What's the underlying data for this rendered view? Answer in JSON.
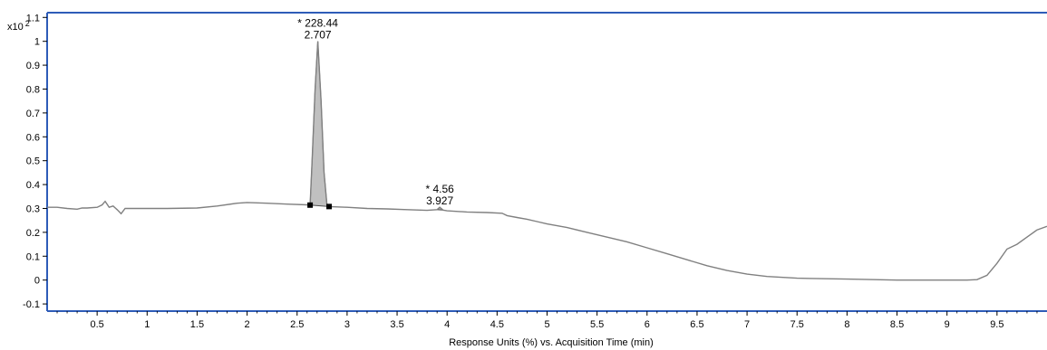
{
  "chart_data": {
    "type": "line",
    "y_multiplier": "x10",
    "y_exponent": "2",
    "xlabel": "Response Units (%) vs. Acquisition Time (min)",
    "xlim": [
      0,
      10
    ],
    "ylim": [
      -0.13,
      1.12
    ],
    "x_ticks": [
      0.5,
      1,
      1.5,
      2,
      2.5,
      3,
      3.5,
      4,
      4.5,
      5,
      5.5,
      6,
      6.5,
      7,
      7.5,
      8,
      8.5,
      9,
      9.5
    ],
    "x_tick_labels": [
      "0.5",
      "1",
      "1.5",
      "2",
      "2.5",
      "3",
      "3.5",
      "4",
      "4.5",
      "5",
      "5.5",
      "6",
      "6.5",
      "7",
      "7.5",
      "8",
      "8.5",
      "9",
      "9.5"
    ],
    "y_ticks": [
      -0.1,
      0,
      0.1,
      0.2,
      0.3,
      0.4,
      0.5,
      0.6,
      0.7,
      0.8,
      0.9,
      1,
      1.1
    ],
    "y_tick_labels": [
      "-0.1",
      "0",
      "0.1",
      "0.2",
      "0.3",
      "0.4",
      "0.5",
      "0.6",
      "0.7",
      "0.8",
      "0.9",
      "1",
      "1.1"
    ],
    "grid": false,
    "colors": {
      "trace": "#808080",
      "peak_fill": "#c0c0c0",
      "frame": "#2e5cb8"
    },
    "series": [
      {
        "x": [
          0,
          0.1,
          0.2,
          0.3,
          0.35,
          0.4,
          0.5,
          0.55,
          0.58,
          0.62,
          0.66,
          0.7,
          0.74,
          0.78,
          0.82,
          0.9,
          1.0,
          1.2,
          1.5,
          1.7,
          1.9,
          2.0,
          2.2,
          2.4,
          2.6,
          2.63,
          2.65,
          2.68,
          2.707,
          2.74,
          2.77,
          2.8,
          2.82,
          3.0,
          3.2,
          3.4,
          3.6,
          3.8,
          3.9,
          3.927,
          3.96,
          4.0,
          4.2,
          4.4,
          4.55,
          4.6,
          4.7,
          4.8,
          4.9,
          5.0,
          5.2,
          5.4,
          5.6,
          5.8,
          6.0,
          6.2,
          6.4,
          6.6,
          6.8,
          7.0,
          7.2,
          7.5,
          8.0,
          8.5,
          9.0,
          9.2,
          9.3,
          9.4,
          9.5,
          9.6,
          9.7,
          9.8,
          9.9,
          10.0
        ],
        "y": [
          0.305,
          0.305,
          0.3,
          0.297,
          0.302,
          0.302,
          0.305,
          0.315,
          0.33,
          0.305,
          0.31,
          0.295,
          0.278,
          0.3,
          0.3,
          0.3,
          0.3,
          0.3,
          0.302,
          0.31,
          0.322,
          0.325,
          0.322,
          0.318,
          0.315,
          0.314,
          0.5,
          0.8,
          1.0,
          0.75,
          0.45,
          0.31,
          0.308,
          0.305,
          0.3,
          0.298,
          0.295,
          0.292,
          0.295,
          0.305,
          0.293,
          0.29,
          0.285,
          0.283,
          0.28,
          0.27,
          0.262,
          0.255,
          0.245,
          0.235,
          0.22,
          0.2,
          0.18,
          0.16,
          0.135,
          0.11,
          0.085,
          0.06,
          0.04,
          0.025,
          0.015,
          0.008,
          0.004,
          0.0,
          0.0,
          0.0,
          0.002,
          0.02,
          0.07,
          0.13,
          0.15,
          0.18,
          0.21,
          0.225
        ]
      }
    ],
    "peaks": [
      {
        "area": "* 228.44",
        "rt": "2.707",
        "x": 2.707,
        "y": 1.0,
        "start": 2.63,
        "end": 2.82
      },
      {
        "area": "* 4.56",
        "rt": "3.927",
        "x": 3.927,
        "y": 0.305,
        "start": 3.9,
        "end": 3.96
      }
    ]
  }
}
